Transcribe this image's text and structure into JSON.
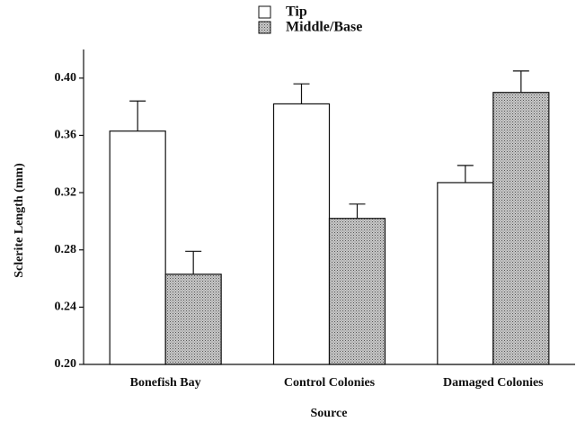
{
  "chart_data": {
    "type": "bar",
    "x_label": "Source",
    "y_label": "Sclerite Length (mm)",
    "categories": [
      "Bonefish Bay",
      "Control Colonies",
      "Damaged Colonies"
    ],
    "series": [
      {
        "name": "Tip",
        "color": "#ffffff",
        "values": [
          0.363,
          0.382,
          0.327
        ],
        "errors": [
          0.021,
          0.014,
          0.012
        ]
      },
      {
        "name": "Middle/Base",
        "color": "#a8a8a8",
        "values": [
          0.263,
          0.302,
          0.39
        ],
        "errors": [
          0.016,
          0.01,
          0.015
        ]
      }
    ],
    "ylim": [
      0.2,
      0.42
    ],
    "yticks": [
      {
        "value": 0.2,
        "label": "0.20"
      },
      {
        "value": 0.24,
        "label": "0.24"
      },
      {
        "value": 0.28,
        "label": "0.28"
      },
      {
        "value": 0.32,
        "label": "0.32"
      },
      {
        "value": 0.36,
        "label": "0.36"
      },
      {
        "value": 0.4,
        "label": "0.40"
      }
    ],
    "legend": "top"
  }
}
